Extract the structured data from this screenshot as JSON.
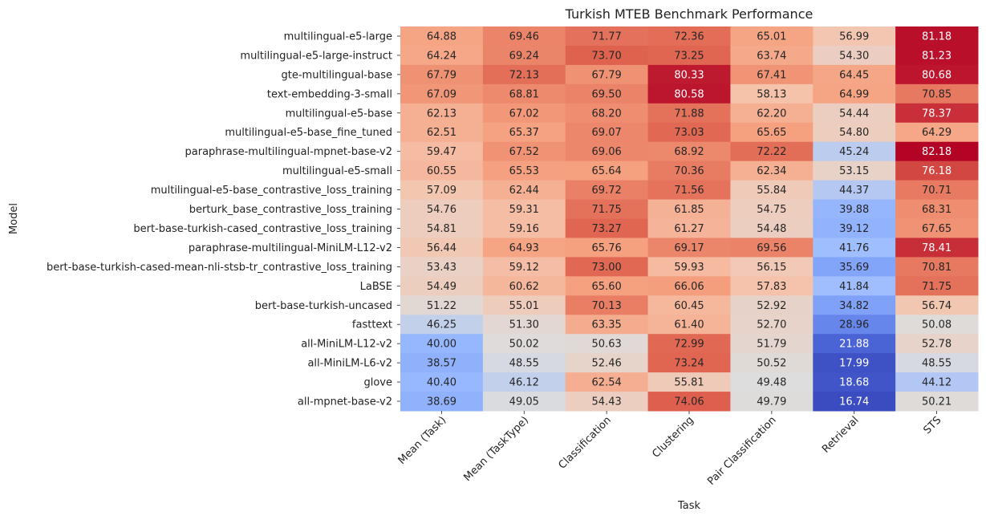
{
  "chart_data": {
    "type": "heatmap",
    "title": "Turkish MTEB Benchmark Performance",
    "xlabel": "Task",
    "ylabel": "Model",
    "colormap": "coolwarm",
    "value_range": [
      16.74,
      82.18
    ],
    "grid": false,
    "colorbar": false,
    "columns": [
      "Mean (Task)",
      "Mean (TaskType)",
      "Classification",
      "Clustering",
      "Pair Classification",
      "Retrieval",
      "STS"
    ],
    "rows": [
      "multilingual-e5-large",
      "multilingual-e5-large-instruct",
      "gte-multilingual-base",
      "text-embedding-3-small",
      "multilingual-e5-base",
      "multilingual-e5-base_fine_tuned",
      "paraphrase-multilingual-mpnet-base-v2",
      "multilingual-e5-small",
      "multilingual-e5-base_contrastive_loss_training",
      "berturk_base_contrastive_loss_training",
      "bert-base-turkish-cased_contrastive_loss_training",
      "paraphrase-multilingual-MiniLM-L12-v2",
      "bert-base-turkish-cased-mean-nli-stsb-tr_contrastive_loss_training",
      "LaBSE",
      "bert-base-turkish-uncased",
      "fasttext",
      "all-MiniLM-L12-v2",
      "all-MiniLM-L6-v2",
      "glove",
      "all-mpnet-base-v2"
    ],
    "values": [
      [
        64.88,
        69.46,
        71.77,
        72.36,
        65.01,
        56.99,
        81.18
      ],
      [
        64.24,
        69.24,
        73.7,
        73.25,
        63.74,
        54.3,
        81.23
      ],
      [
        67.79,
        72.13,
        67.79,
        80.33,
        67.41,
        64.45,
        80.68
      ],
      [
        67.09,
        68.81,
        69.5,
        80.58,
        58.13,
        64.99,
        70.85
      ],
      [
        62.13,
        67.02,
        68.2,
        71.88,
        62.2,
        54.44,
        78.37
      ],
      [
        62.51,
        65.37,
        69.07,
        73.03,
        65.65,
        54.8,
        64.29
      ],
      [
        59.47,
        67.52,
        69.06,
        68.92,
        72.22,
        45.24,
        82.18
      ],
      [
        60.55,
        65.53,
        65.64,
        70.36,
        62.34,
        53.15,
        76.18
      ],
      [
        57.09,
        62.44,
        69.72,
        71.56,
        55.84,
        44.37,
        70.71
      ],
      [
        54.76,
        59.31,
        71.75,
        61.85,
        54.75,
        39.88,
        68.31
      ],
      [
        54.81,
        59.16,
        73.27,
        61.27,
        54.48,
        39.12,
        67.65
      ],
      [
        56.44,
        64.93,
        65.76,
        69.17,
        69.56,
        41.76,
        78.41
      ],
      [
        53.43,
        59.12,
        73.0,
        59.93,
        56.15,
        35.69,
        70.81
      ],
      [
        54.49,
        60.62,
        65.6,
        66.06,
        57.83,
        41.84,
        71.75
      ],
      [
        51.22,
        55.01,
        70.13,
        60.45,
        52.92,
        34.82,
        56.74
      ],
      [
        46.25,
        51.3,
        63.35,
        61.4,
        52.7,
        28.96,
        50.08
      ],
      [
        40.0,
        50.02,
        50.63,
        72.99,
        51.79,
        21.88,
        52.78
      ],
      [
        38.57,
        48.55,
        52.46,
        73.24,
        50.52,
        17.99,
        48.55
      ],
      [
        40.4,
        46.12,
        62.54,
        55.81,
        49.48,
        18.68,
        44.12
      ],
      [
        38.69,
        49.05,
        54.43,
        74.06,
        49.79,
        16.74,
        50.21
      ]
    ]
  }
}
